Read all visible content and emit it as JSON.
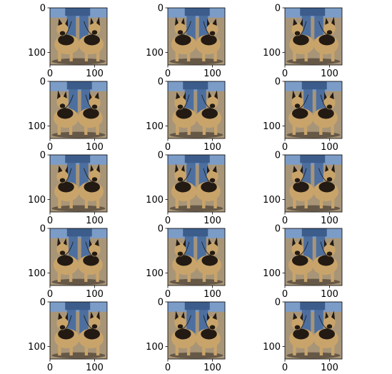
{
  "chart_data": {
    "type": "image-grid",
    "rows": 5,
    "cols": 3,
    "image_size": [
      128,
      128
    ],
    "x_ticks": [
      0,
      100
    ],
    "y_ticks": [
      0,
      100
    ],
    "panel_count": 15,
    "panel_content": "augmented photo of two German Shepherd dogs on leashes held by a person in jeans",
    "colors": {
      "sky": "#7c9cc8",
      "jeans": "#4d6f9f",
      "ground": "#a89578",
      "dog_tan": "#c9a46a",
      "dog_dark": "#231a13",
      "shadow": "#3b3026"
    }
  }
}
